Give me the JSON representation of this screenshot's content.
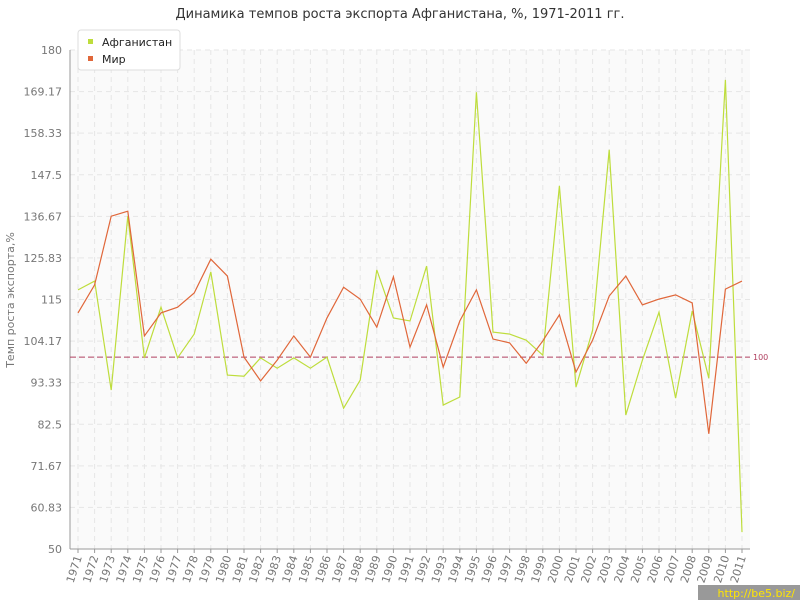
{
  "chart_data": {
    "type": "line",
    "title": "Динамика темпов роста экспорта Афганистана, %, 1971-2011 гг.",
    "y_label": "Темп роста экспорта,%",
    "categories": [
      "1971",
      "1972",
      "1973",
      "1974",
      "1975",
      "1976",
      "1977",
      "1978",
      "1979",
      "1980",
      "1981",
      "1982",
      "1983",
      "1984",
      "1985",
      "1986",
      "1987",
      "1988",
      "1989",
      "1990",
      "1991",
      "1992",
      "1993",
      "1994",
      "1995",
      "1996",
      "1997",
      "1998",
      "1999",
      "2000",
      "2001",
      "2002",
      "2003",
      "2004",
      "2005",
      "2006",
      "2007",
      "2008",
      "2009",
      "2010",
      "2011"
    ],
    "series": [
      {
        "name": "Афганистан",
        "color": "#bedd3c",
        "values": [
          117.5,
          119.8,
          91.4,
          136.7,
          99.8,
          113,
          99.8,
          106,
          122.2,
          95.3,
          95,
          99.8,
          97.1,
          99.8,
          97.1,
          100,
          86.7,
          94,
          122.7,
          110.2,
          109.4,
          123.7,
          87.5,
          89.6,
          169,
          106.5,
          106,
          104.4,
          100.5,
          144.6,
          92.2,
          107,
          154,
          84.9,
          99.2,
          111.7,
          89.3,
          112,
          94.5,
          172.2,
          54.4
        ]
      },
      {
        "name": "Мир",
        "color": "#e0673a",
        "values": [
          111.5,
          118.8,
          136.7,
          138,
          105.5,
          111.5,
          113,
          116.7,
          125.5,
          121.1,
          100,
          93.8,
          99.2,
          105.5,
          100,
          110.2,
          118.2,
          115.1,
          107.8,
          120.9,
          102.6,
          113.6,
          97.4,
          109.4,
          117.5,
          104.7,
          103.7,
          98.4,
          104.2,
          111,
          96.1,
          104.4,
          115.9,
          121.1,
          113.6,
          115.1,
          116.2,
          114.1,
          80,
          117.7,
          119.8
        ]
      }
    ],
    "ylim": [
      50,
      180
    ],
    "yticks": [
      50,
      60.83,
      71.67,
      82.5,
      93.33,
      104.17,
      115,
      125.83,
      136.67,
      147.5,
      158.33,
      169.17,
      180
    ],
    "grid": true,
    "reference_line": 100,
    "reference_color": "#b04060",
    "legend": "top-left",
    "watermark": "http://be5.biz/"
  }
}
